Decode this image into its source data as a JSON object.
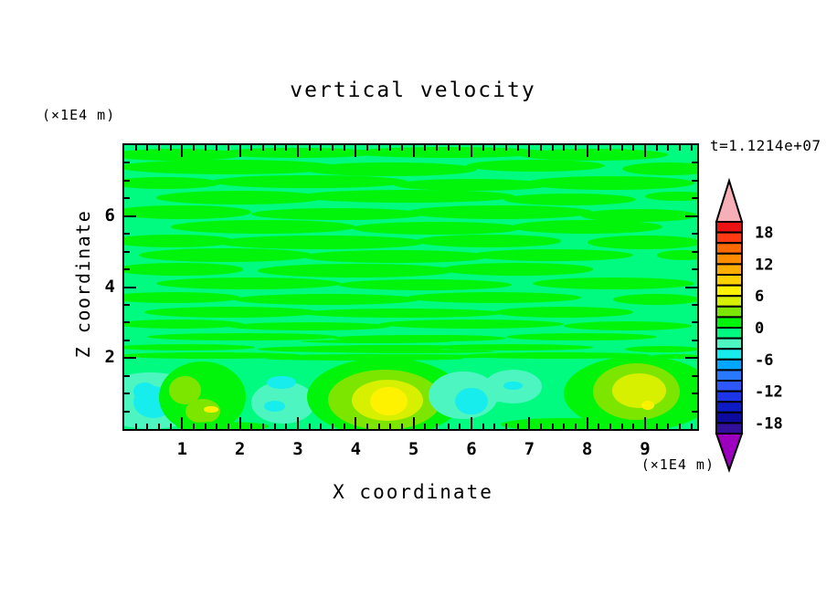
{
  "title": "vertical velocity",
  "timestamp": "t=1.1214e+07",
  "xlabel": "X coordinate",
  "ylabel": "Z coordinate",
  "y_unit_top": "(×1E4 m)",
  "x_unit_bottom": "(×1E4 m)",
  "chart_data": {
    "type": "heatmap",
    "title": "vertical velocity",
    "xlabel": "X coordinate",
    "ylabel": "Z coordinate",
    "x_unit": "(×1E4 m)",
    "y_unit": "(×1E4 m)",
    "time_annotation": "t=1.1214e+07",
    "xlim": [
      0,
      9.9
    ],
    "ylim": [
      0,
      8
    ],
    "xticks": [
      1,
      2,
      3,
      4,
      5,
      6,
      7,
      8,
      9
    ],
    "x_minor_step": 0.2,
    "yticks": [
      2,
      4,
      6
    ],
    "y_minor_step": 0.5,
    "grid": false,
    "frame_color": "#000000",
    "colorbar": {
      "position": "right",
      "value_min": -20,
      "value_max": 20,
      "cell_step": 2,
      "tick_labels": [
        18,
        12,
        6,
        0,
        -6,
        -12,
        -18
      ],
      "colors_top_to_bottom": [
        "#EC1214",
        "#FD3A12",
        "#FF6A00",
        "#FF8C00",
        "#FFAE00",
        "#FFD000",
        "#FFF200",
        "#D6F000",
        "#7CE600",
        "#00F50A",
        "#00FB80",
        "#4DF5C0",
        "#17EDED",
        "#00A6FF",
        "#2979FF",
        "#2E57FF",
        "#1C35E8",
        "#0D1BC4",
        "#0D0A9E",
        "#32109B"
      ],
      "over_color": "#F7AFB7",
      "under_color": "#9C00BE"
    },
    "field": {
      "description": "contour field: wavy horizontal bands of w in [0,2] over background w in [-2,0] above z=2; convective plumes below z=2",
      "background_color": "#00FB80",
      "background_level": "-2..0",
      "streak_color": "#00F50A",
      "streak_level": "0..2",
      "streaks": [
        [
          0.9,
          7.72,
          1.15,
          0.17
        ],
        [
          3.0,
          7.78,
          1.4,
          0.14
        ],
        [
          5.6,
          7.8,
          1.7,
          0.15
        ],
        [
          8.1,
          7.72,
          1.3,
          0.17
        ],
        [
          1.8,
          7.38,
          1.9,
          0.2
        ],
        [
          4.6,
          7.32,
          1.5,
          0.19
        ],
        [
          7.1,
          7.42,
          1.2,
          0.17
        ],
        [
          9.4,
          7.33,
          0.8,
          0.18
        ],
        [
          0.7,
          6.93,
          0.95,
          0.17
        ],
        [
          3.2,
          6.97,
          1.7,
          0.19
        ],
        [
          6.0,
          6.88,
          1.35,
          0.17
        ],
        [
          8.4,
          6.93,
          1.45,
          0.19
        ],
        [
          2.0,
          6.52,
          1.45,
          0.19
        ],
        [
          4.9,
          6.56,
          1.85,
          0.17
        ],
        [
          7.7,
          6.47,
          1.15,
          0.17
        ],
        [
          9.55,
          6.56,
          0.55,
          0.14
        ],
        [
          1.0,
          6.1,
          1.2,
          0.19
        ],
        [
          3.7,
          6.05,
          1.5,
          0.17
        ],
        [
          6.5,
          6.1,
          1.6,
          0.19
        ],
        [
          8.9,
          6.02,
          1.0,
          0.17
        ],
        [
          2.4,
          5.7,
          1.6,
          0.19
        ],
        [
          5.4,
          5.66,
          1.45,
          0.17
        ],
        [
          8.0,
          5.7,
          1.3,
          0.19
        ],
        [
          0.85,
          5.3,
          1.05,
          0.17
        ],
        [
          3.4,
          5.26,
          1.8,
          0.19
        ],
        [
          6.3,
          5.3,
          1.25,
          0.17
        ],
        [
          9.0,
          5.26,
          1.0,
          0.19
        ],
        [
          1.75,
          4.9,
          1.5,
          0.19
        ],
        [
          4.7,
          4.86,
          1.6,
          0.17
        ],
        [
          7.4,
          4.9,
          1.4,
          0.17
        ],
        [
          9.65,
          4.9,
          0.45,
          0.14
        ],
        [
          0.95,
          4.5,
          1.1,
          0.17
        ],
        [
          4.0,
          4.46,
          1.7,
          0.19
        ],
        [
          6.8,
          4.5,
          1.3,
          0.17
        ],
        [
          2.15,
          4.1,
          1.6,
          0.17
        ],
        [
          5.2,
          4.06,
          1.5,
          0.15
        ],
        [
          8.45,
          4.1,
          1.4,
          0.17
        ],
        [
          0.85,
          3.7,
          1.15,
          0.15
        ],
        [
          3.5,
          3.66,
          1.6,
          0.15
        ],
        [
          6.4,
          3.7,
          1.5,
          0.15
        ],
        [
          9.2,
          3.66,
          0.75,
          0.15
        ],
        [
          1.85,
          3.3,
          1.5,
          0.15
        ],
        [
          4.8,
          3.26,
          1.75,
          0.13
        ],
        [
          7.6,
          3.3,
          1.2,
          0.15
        ],
        [
          0.95,
          2.95,
          1.1,
          0.13
        ],
        [
          3.2,
          2.9,
          1.4,
          0.12
        ],
        [
          6.0,
          2.95,
          1.6,
          0.13
        ],
        [
          8.7,
          2.9,
          1.1,
          0.13
        ],
        [
          2.05,
          2.6,
          1.65,
          0.11
        ],
        [
          5.1,
          2.56,
          1.5,
          0.1
        ],
        [
          7.9,
          2.6,
          1.3,
          0.11
        ],
        [
          1.05,
          2.3,
          1.2,
          0.09
        ],
        [
          3.9,
          2.26,
          1.6,
          0.09
        ],
        [
          6.7,
          2.3,
          1.4,
          0.09
        ],
        [
          9.3,
          2.26,
          0.65,
          0.09
        ],
        [
          1.5,
          2.07,
          1.55,
          0.08
        ],
        [
          4.5,
          2.04,
          2.0,
          0.07
        ],
        [
          7.5,
          2.07,
          1.6,
          0.08
        ],
        [
          9.55,
          2.04,
          0.45,
          0.06
        ],
        [
          4.35,
          2.46,
          1.3,
          0.05
        ],
        [
          4.65,
          2.32,
          1.5,
          0.05
        ],
        [
          4.95,
          2.18,
          1.45,
          0.05
        ],
        [
          5.35,
          2.6,
          1.0,
          0.045
        ],
        [
          4.15,
          1.98,
          1.7,
          0.05
        ]
      ],
      "features": [
        [
          0.45,
          0.8,
          0.95,
          0.8,
          "#4DF5C0",
          "-4..-2"
        ],
        [
          0.5,
          0.75,
          0.35,
          0.45,
          "#17EDED",
          "-6..-4"
        ],
        [
          0.35,
          1.05,
          0.2,
          0.25,
          "#17EDED",
          "-6..-4"
        ],
        [
          1.35,
          0.9,
          0.75,
          1.0,
          "#00F50A",
          "0..2"
        ],
        [
          1.05,
          1.1,
          0.28,
          0.4,
          "#7CE600",
          "2..4"
        ],
        [
          1.35,
          0.5,
          0.3,
          0.35,
          "#7CE600",
          "2..4"
        ],
        [
          1.5,
          0.55,
          0.12,
          0.1,
          "#FFF200",
          "6..8"
        ],
        [
          2.75,
          0.75,
          0.55,
          0.6,
          "#4DF5C0",
          "-4..-2"
        ],
        [
          2.6,
          0.65,
          0.18,
          0.15,
          "#17EDED",
          "-6..-4"
        ],
        [
          2.72,
          1.3,
          0.25,
          0.18,
          "#17EDED",
          "-6..-4"
        ],
        [
          4.5,
          0.9,
          1.35,
          1.1,
          "#00F50A",
          "0..2"
        ],
        [
          4.5,
          0.82,
          0.98,
          0.85,
          "#7CE600",
          "2..4"
        ],
        [
          4.55,
          0.8,
          0.62,
          0.58,
          "#D6F000",
          "4..6"
        ],
        [
          4.57,
          0.78,
          0.32,
          0.4,
          "#FFF200",
          "6..8"
        ],
        [
          5.85,
          0.95,
          0.6,
          0.68,
          "#4DF5C0",
          "-4..-2"
        ],
        [
          6.72,
          1.2,
          0.5,
          0.48,
          "#4DF5C0",
          "-4..-2"
        ],
        [
          6.3,
          1.1,
          0.5,
          0.35,
          "#4DF5C0",
          "-4..-2"
        ],
        [
          6.0,
          0.78,
          0.28,
          0.38,
          "#17EDED",
          "-6..-4"
        ],
        [
          6.72,
          1.22,
          0.16,
          0.12,
          "#17EDED",
          "-6..-4"
        ],
        [
          8.9,
          1.0,
          1.3,
          1.05,
          "#00F50A",
          "0..2"
        ],
        [
          8.85,
          1.05,
          0.75,
          0.8,
          "#7CE600",
          "2..4"
        ],
        [
          8.9,
          1.08,
          0.47,
          0.5,
          "#D6F000",
          "4..6"
        ],
        [
          9.05,
          0.66,
          0.11,
          0.13,
          "#FFF200",
          "6..8"
        ],
        [
          7.6,
          0.12,
          1.1,
          0.18,
          "#00F50A",
          "0..2"
        ],
        [
          1.7,
          0.08,
          0.8,
          0.12,
          "#00F50A",
          "0..2"
        ]
      ]
    }
  }
}
